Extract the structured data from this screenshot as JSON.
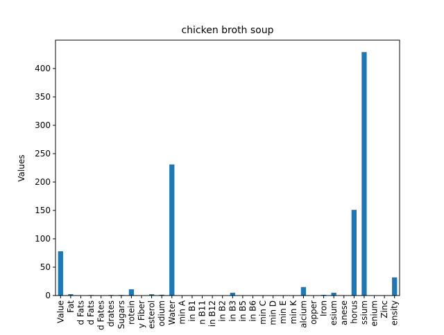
{
  "chart_data": {
    "type": "bar",
    "title": "chicken broth soup",
    "xlabel": "",
    "ylabel": "Values",
    "ylim": [
      0,
      450
    ],
    "yticks": [
      0,
      50,
      100,
      150,
      200,
      250,
      300,
      350,
      400
    ],
    "grid": false,
    "legend": "none",
    "bar_color": "#1f77b4",
    "categories": [
      "Value",
      "Fat",
      "d Fats",
      "d Fats",
      "d Fates",
      "drates",
      "Sugars",
      "rotein",
      "y Fiber",
      "esterol",
      "odium",
      "Water",
      "min A",
      "in B1",
      "n B11",
      "in B12",
      "in B2",
      "in B3",
      "in B5",
      "in B6",
      "min C",
      "min D",
      "min E",
      "min K",
      "alcium",
      "opper",
      "Iron",
      "esium",
      "anese",
      "horus",
      "ssium",
      "enium",
      "Zinc",
      "ensity"
    ],
    "values": [
      78,
      2.5,
      0.6,
      0.9,
      0.4,
      1,
      1,
      11,
      0.2,
      2.3,
      1.4,
      231,
      0.3,
      0.1,
      0.1,
      0.1,
      0.2,
      5,
      0.3,
      0.2,
      0.1,
      0.1,
      0.1,
      0.1,
      15,
      0.3,
      1.2,
      5,
      0.3,
      151,
      429,
      0.3,
      0.5,
      32
    ]
  }
}
